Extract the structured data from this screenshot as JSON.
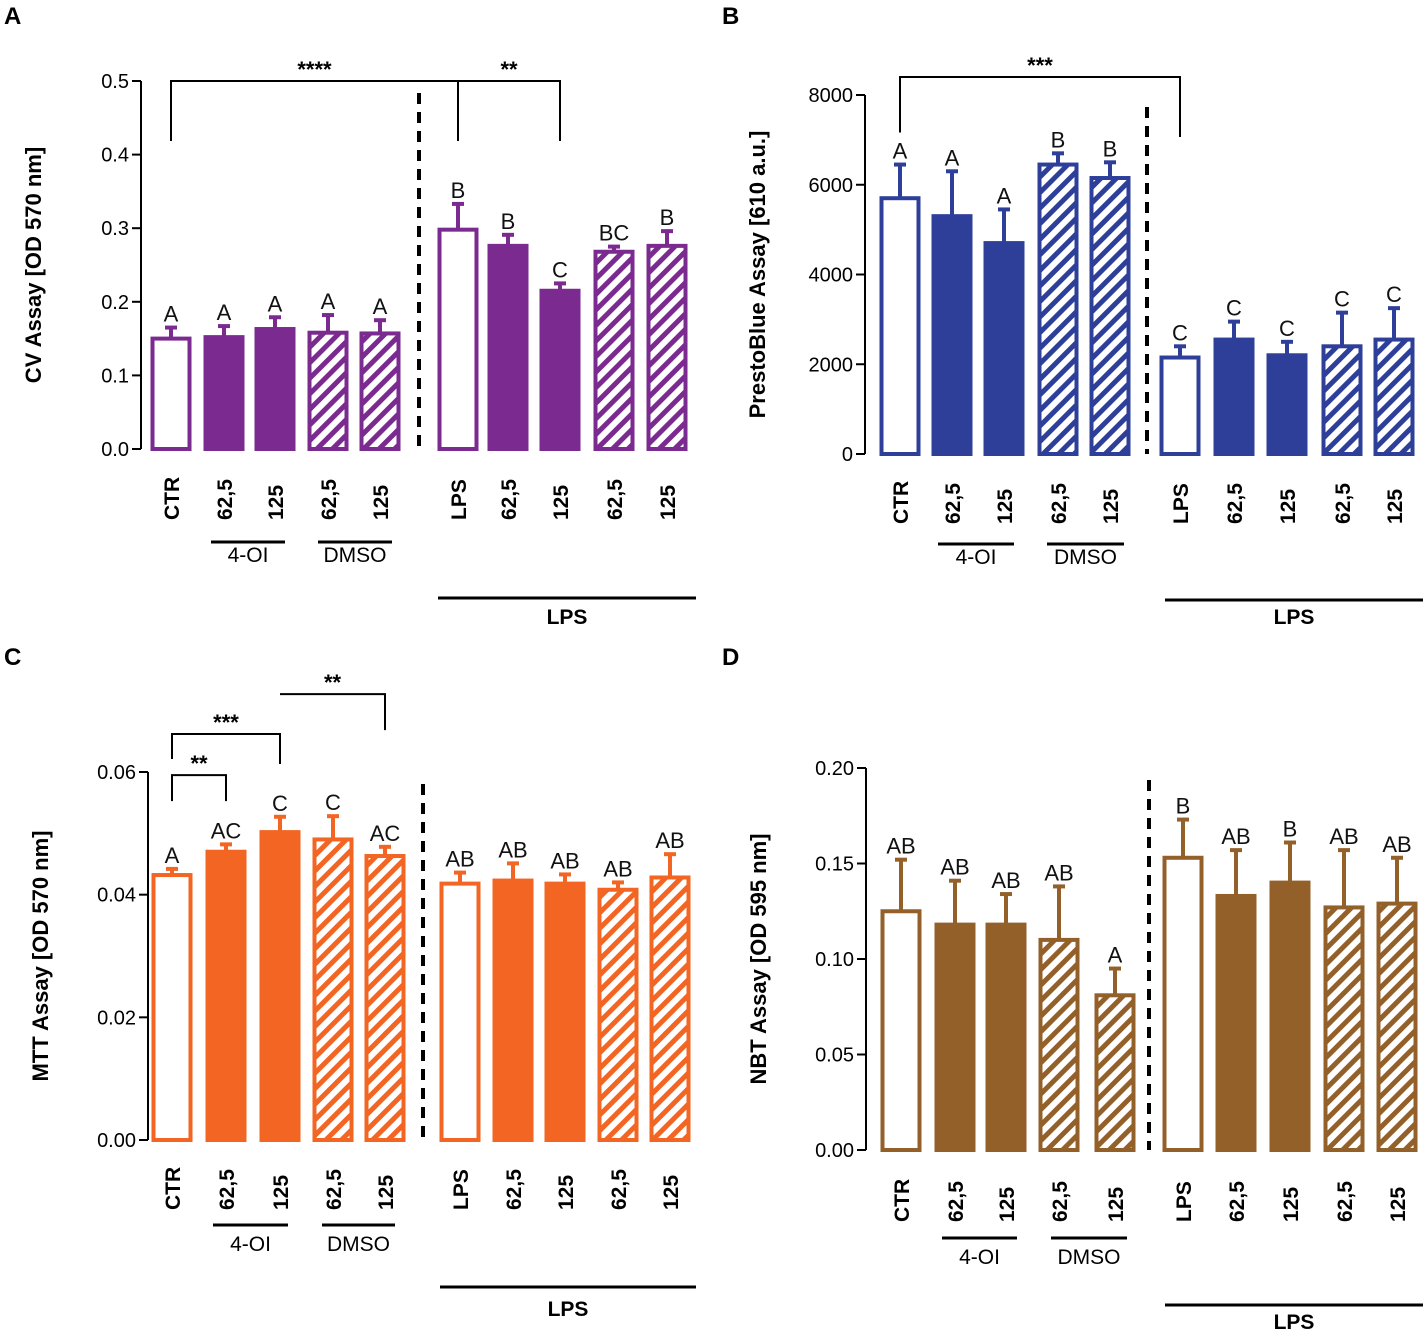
{
  "figure": {
    "panels": [
      "A",
      "B",
      "C",
      "D"
    ],
    "category_labels": [
      "CTR",
      "62,5",
      "125",
      "62,5",
      "125",
      "LPS",
      "62,5",
      "125",
      "62,5",
      "125"
    ],
    "group_labels": {
      "oi": "4-OI",
      "dmso": "DMSO",
      "lps": "LPS"
    }
  },
  "chart_data": [
    {
      "panel": "A",
      "type": "bar",
      "color": "#7b2a8f",
      "ylabel": "CV Assay [OD 570 nm]",
      "ylim": [
        0,
        0.5
      ],
      "yticks": [
        0.0,
        0.1,
        0.2,
        0.3,
        0.4,
        0.5
      ],
      "tick_labels": [
        "0.0",
        "0.1",
        "0.2",
        "0.3",
        "0.4",
        "0.5"
      ],
      "categories": [
        "CTR",
        "62,5",
        "125",
        "62,5",
        "125",
        "LPS",
        "62,5",
        "125",
        "62,5",
        "125"
      ],
      "fill": [
        "open",
        "solid",
        "solid",
        "hatched",
        "hatched",
        "open",
        "solid",
        "solid",
        "hatched",
        "hatched"
      ],
      "values": [
        0.15,
        0.152,
        0.163,
        0.158,
        0.157,
        0.298,
        0.276,
        0.215,
        0.268,
        0.276
      ],
      "errors": [
        0.015,
        0.015,
        0.016,
        0.024,
        0.018,
        0.035,
        0.015,
        0.01,
        0.007,
        0.02
      ],
      "letters": [
        "A",
        "A",
        "A",
        "A",
        "A",
        "B",
        "B",
        "C",
        "BC",
        "B"
      ],
      "brackets": [
        {
          "from": 0,
          "to": 5,
          "y": 0.5,
          "label": "****"
        },
        {
          "from": 5,
          "to": 7,
          "y": 0.5,
          "label": "**"
        }
      ]
    },
    {
      "panel": "B",
      "type": "bar",
      "color": "#2e3f9a",
      "ylabel": "PrestoBlue Assay [610 a.u.]",
      "ylim": [
        0,
        8000
      ],
      "yticks": [
        0,
        2000,
        4000,
        6000,
        8000
      ],
      "tick_labels": [
        "0",
        "2000",
        "4000",
        "6000",
        "8000"
      ],
      "categories": [
        "CTR",
        "62,5",
        "125",
        "62,5",
        "125",
        "LPS",
        "62,5",
        "125",
        "62,5",
        "125"
      ],
      "fill": [
        "open",
        "solid",
        "solid",
        "hatched",
        "hatched",
        "open",
        "solid",
        "solid",
        "hatched",
        "hatched"
      ],
      "values": [
        5700,
        5300,
        4700,
        6450,
        6150,
        2150,
        2550,
        2200,
        2400,
        2550
      ],
      "errors": [
        750,
        1000,
        750,
        250,
        350,
        250,
        400,
        300,
        750,
        700
      ],
      "letters": [
        "A",
        "A",
        "A",
        "B",
        "B",
        "C",
        "C",
        "C",
        "C",
        "C"
      ],
      "brackets": [
        {
          "from": 0,
          "to": 5,
          "y": 8400,
          "label": "***"
        }
      ]
    },
    {
      "panel": "C",
      "type": "bar",
      "color": "#f26522",
      "ylabel": "MTT Assay [OD 570 nm]",
      "ylim": [
        0,
        0.06
      ],
      "yticks": [
        0.0,
        0.02,
        0.04,
        0.06
      ],
      "tick_labels": [
        "0.00",
        "0.02",
        "0.04",
        "0.06"
      ],
      "categories": [
        "CTR",
        "62,5",
        "125",
        "62,5",
        "125",
        "LPS",
        "62,5",
        "125",
        "62,5",
        "125"
      ],
      "fill": [
        "open",
        "solid",
        "solid",
        "hatched",
        "hatched",
        "open",
        "solid",
        "solid",
        "hatched",
        "hatched"
      ],
      "values": [
        0.0432,
        0.047,
        0.0502,
        0.049,
        0.0463,
        0.0418,
        0.0423,
        0.0418,
        0.0408,
        0.0428
      ],
      "errors": [
        0.001,
        0.0012,
        0.0025,
        0.0038,
        0.0015,
        0.0018,
        0.0028,
        0.0015,
        0.0012,
        0.0038
      ],
      "letters": [
        "A",
        "AC",
        "C",
        "C",
        "AC",
        "AB",
        "AB",
        "AB",
        "AB",
        "AB"
      ],
      "brackets": [
        {
          "from": 0,
          "to": 1,
          "y": 0.0595,
          "label": "**"
        },
        {
          "from": 0,
          "to": 2,
          "y": 0.0662,
          "label": "***"
        },
        {
          "from": 2,
          "to": 4,
          "y": 0.0727,
          "label": "**"
        }
      ]
    },
    {
      "panel": "D",
      "type": "bar",
      "color": "#94602a",
      "ylabel": "NBT Assay [OD 595 nm]",
      "ylim": [
        0,
        0.2
      ],
      "yticks": [
        0.0,
        0.05,
        0.1,
        0.15,
        0.2
      ],
      "tick_labels": [
        "0.00",
        "0.05",
        "0.10",
        "0.15",
        "0.20"
      ],
      "categories": [
        "CTR",
        "62,5",
        "125",
        "62,5",
        "125",
        "LPS",
        "62,5",
        "125",
        "62,5",
        "125"
      ],
      "fill": [
        "open",
        "solid",
        "solid",
        "hatched",
        "hatched",
        "open",
        "solid",
        "solid",
        "hatched",
        "hatched"
      ],
      "values": [
        0.125,
        0.118,
        0.118,
        0.11,
        0.081,
        0.153,
        0.133,
        0.14,
        0.127,
        0.129
      ],
      "errors": [
        0.027,
        0.023,
        0.016,
        0.028,
        0.014,
        0.02,
        0.024,
        0.021,
        0.03,
        0.024
      ],
      "letters": [
        "AB",
        "AB",
        "AB",
        "AB",
        "A",
        "B",
        "AB",
        "B",
        "AB",
        "AB"
      ],
      "brackets": []
    }
  ]
}
